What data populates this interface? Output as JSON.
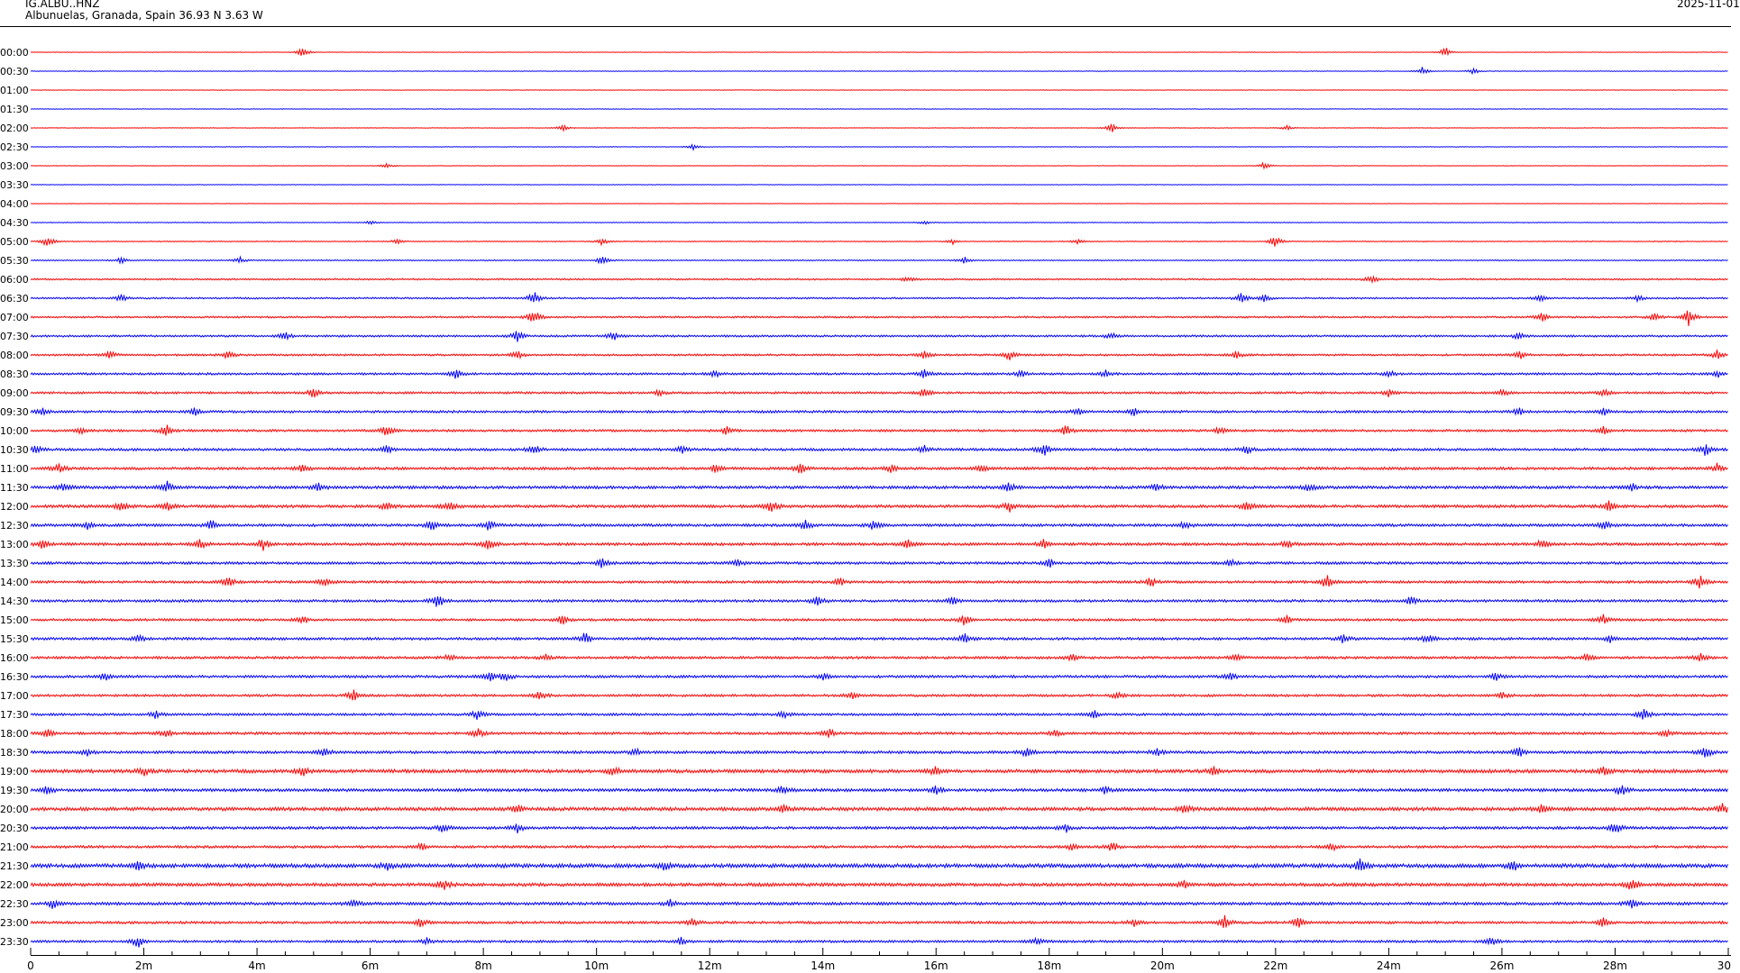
{
  "header": {
    "station": "IG.ALBU..HNZ",
    "location": "Albunuelas, Granada, Spain  36.93 N 3.63 W",
    "date": "2025-11-01"
  },
  "colors": {
    "odd_trace": "#ff0000",
    "even_trace": "#0000ff",
    "axis": "#000000"
  },
  "chart_data": {
    "type": "line",
    "title": "",
    "xlabel": "",
    "ylabel": "",
    "xlim": [
      0,
      30
    ],
    "x_ticks": [
      "0",
      "2m",
      "4m",
      "6m",
      "8m",
      "10m",
      "12m",
      "14m",
      "16m",
      "18m",
      "20m",
      "22m",
      "24m",
      "26m",
      "28m",
      "30"
    ],
    "x_tick_values": [
      0,
      2,
      4,
      6,
      8,
      10,
      12,
      14,
      16,
      18,
      20,
      22,
      24,
      26,
      28,
      30
    ],
    "minor_tick_step": 0.5,
    "rows": [
      "00:00",
      "00:30",
      "01:00",
      "01:30",
      "02:00",
      "02:30",
      "03:00",
      "03:30",
      "04:00",
      "04:30",
      "05:00",
      "05:30",
      "06:00",
      "06:30",
      "07:00",
      "07:30",
      "08:00",
      "08:30",
      "09:00",
      "09:30",
      "10:00",
      "10:30",
      "11:00",
      "11:30",
      "12:00",
      "12:30",
      "13:00",
      "13:30",
      "14:00",
      "14:30",
      "15:00",
      "15:30",
      "16:00",
      "16:30",
      "17:00",
      "17:30",
      "18:00",
      "18:30",
      "19:00",
      "19:30",
      "20:00",
      "20:30",
      "21:00",
      "21:30",
      "22:00",
      "22:30",
      "23:00",
      "23:30"
    ],
    "noise_level": [
      0.3,
      0.3,
      0.3,
      0.3,
      0.3,
      0.3,
      0.3,
      0.3,
      0.3,
      0.4,
      0.5,
      0.6,
      0.9,
      0.9,
      1.0,
      1.1,
      1.1,
      1.2,
      1.2,
      1.3,
      1.3,
      1.4,
      1.5,
      1.6,
      1.6,
      1.5,
      1.5,
      1.4,
      1.4,
      1.4,
      1.3,
      1.4,
      1.4,
      1.4,
      1.3,
      1.3,
      1.4,
      1.5,
      1.9,
      1.6,
      1.9,
      1.5,
      1.4,
      2.1,
      1.8,
      1.6,
      1.4,
      1.3
    ],
    "events": [
      [
        [
          4.8,
          4.5
        ],
        [
          25.0,
          4.5
        ]
      ],
      [
        [
          24.6,
          3.5
        ],
        [
          25.5,
          2.5
        ]
      ],
      [],
      [],
      [
        [
          9.4,
          3
        ],
        [
          19.1,
          4
        ],
        [
          22.2,
          2
        ]
      ],
      [
        [
          11.7,
          2.5
        ]
      ],
      [
        [
          6.3,
          2.5
        ],
        [
          21.8,
          3
        ]
      ],
      [],
      [],
      [
        [
          6.0,
          1.5
        ],
        [
          15.8,
          1.5
        ]
      ],
      [
        [
          0.3,
          5
        ],
        [
          6.5,
          2.5
        ],
        [
          10.1,
          3
        ],
        [
          16.3,
          2
        ],
        [
          18.5,
          2
        ],
        [
          22.0,
          5
        ]
      ],
      [
        [
          1.6,
          2.5
        ],
        [
          3.7,
          2.5
        ],
        [
          10.1,
          4
        ],
        [
          16.5,
          3
        ]
      ],
      [
        [
          15.5,
          2
        ],
        [
          23.7,
          4
        ]
      ],
      [
        [
          1.6,
          3
        ],
        [
          8.9,
          6
        ],
        [
          21.4,
          6
        ],
        [
          21.8,
          3
        ],
        [
          26.7,
          3
        ],
        [
          28.4,
          2.5
        ]
      ],
      [
        [
          8.9,
          7
        ],
        [
          26.7,
          3.5
        ],
        [
          28.7,
          4
        ],
        [
          29.3,
          7
        ]
      ],
      [
        [
          4.5,
          3
        ],
        [
          8.6,
          5
        ],
        [
          10.3,
          4
        ],
        [
          19.1,
          3
        ],
        [
          26.3,
          3
        ]
      ],
      [
        [
          1.4,
          3.5
        ],
        [
          3.5,
          3.5
        ],
        [
          8.6,
          4
        ],
        [
          15.8,
          3
        ],
        [
          17.3,
          4
        ],
        [
          21.3,
          3
        ],
        [
          26.3,
          4
        ],
        [
          29.8,
          3.5
        ]
      ],
      [
        [
          7.5,
          5
        ],
        [
          12.1,
          3
        ],
        [
          15.8,
          4
        ],
        [
          17.5,
          3
        ],
        [
          19.0,
          3
        ],
        [
          24.0,
          3
        ],
        [
          29.8,
          3
        ]
      ],
      [
        [
          5.0,
          4
        ],
        [
          11.1,
          2.5
        ],
        [
          15.8,
          4
        ],
        [
          24.0,
          3
        ],
        [
          26.0,
          3
        ],
        [
          27.8,
          3
        ]
      ],
      [
        [
          0.2,
          3
        ],
        [
          2.9,
          3
        ],
        [
          18.5,
          3
        ],
        [
          19.5,
          3
        ],
        [
          26.3,
          3
        ],
        [
          27.8,
          3
        ]
      ],
      [
        [
          0.9,
          3
        ],
        [
          2.4,
          5
        ],
        [
          6.3,
          5
        ],
        [
          12.3,
          3
        ],
        [
          18.3,
          4
        ],
        [
          21.0,
          3
        ],
        [
          27.8,
          3
        ]
      ],
      [
        [
          0.1,
          3
        ],
        [
          6.3,
          3
        ],
        [
          8.9,
          4
        ],
        [
          11.5,
          3
        ],
        [
          15.8,
          3
        ],
        [
          17.9,
          6
        ],
        [
          21.5,
          3
        ],
        [
          29.6,
          5
        ]
      ],
      [
        [
          0.5,
          4
        ],
        [
          4.8,
          4
        ],
        [
          12.1,
          3
        ],
        [
          13.6,
          4
        ],
        [
          15.2,
          3
        ],
        [
          16.8,
          3
        ],
        [
          29.8,
          3.5
        ]
      ],
      [
        [
          0.6,
          3
        ],
        [
          2.4,
          5
        ],
        [
          5.1,
          3
        ],
        [
          17.3,
          4
        ],
        [
          19.9,
          3
        ],
        [
          22.6,
          3
        ],
        [
          28.3,
          3
        ]
      ],
      [
        [
          1.6,
          4
        ],
        [
          2.4,
          4
        ],
        [
          6.3,
          3.5
        ],
        [
          7.4,
          4
        ],
        [
          13.1,
          5
        ],
        [
          17.3,
          4
        ],
        [
          21.5,
          4
        ],
        [
          27.9,
          4
        ]
      ],
      [
        [
          1.0,
          3
        ],
        [
          3.2,
          4
        ],
        [
          7.1,
          4
        ],
        [
          8.1,
          4
        ],
        [
          13.7,
          4
        ],
        [
          14.9,
          4
        ],
        [
          20.4,
          3
        ],
        [
          27.8,
          4
        ]
      ],
      [
        [
          0.2,
          4
        ],
        [
          3.0,
          4
        ],
        [
          4.1,
          5
        ],
        [
          8.1,
          5
        ],
        [
          15.5,
          4
        ],
        [
          17.9,
          3.5
        ],
        [
          22.2,
          3
        ],
        [
          26.7,
          4
        ]
      ],
      [
        [
          10.1,
          4
        ],
        [
          12.5,
          3
        ],
        [
          18.0,
          4
        ],
        [
          21.2,
          3
        ]
      ],
      [
        [
          3.5,
          4
        ],
        [
          5.2,
          4
        ],
        [
          14.3,
          3
        ],
        [
          19.8,
          4
        ],
        [
          22.9,
          6
        ],
        [
          29.5,
          5
        ]
      ],
      [
        [
          7.2,
          6
        ],
        [
          13.9,
          5
        ],
        [
          16.3,
          3
        ],
        [
          24.4,
          4
        ]
      ],
      [
        [
          4.8,
          3
        ],
        [
          9.4,
          4
        ],
        [
          16.5,
          4
        ],
        [
          22.2,
          3
        ],
        [
          27.8,
          4
        ]
      ],
      [
        [
          1.9,
          3
        ],
        [
          9.8,
          5
        ],
        [
          16.5,
          4
        ],
        [
          23.2,
          4
        ],
        [
          24.7,
          4
        ],
        [
          27.9,
          3
        ]
      ],
      [
        [
          7.4,
          3
        ],
        [
          9.1,
          3
        ],
        [
          18.4,
          3
        ],
        [
          21.3,
          3
        ],
        [
          27.5,
          3
        ],
        [
          29.5,
          4
        ]
      ],
      [
        [
          1.3,
          3.5
        ],
        [
          8.1,
          4
        ],
        [
          8.4,
          4
        ],
        [
          14.0,
          3
        ],
        [
          21.2,
          3
        ],
        [
          25.9,
          3
        ]
      ],
      [
        [
          5.7,
          5
        ],
        [
          9.0,
          4
        ],
        [
          14.5,
          3
        ],
        [
          19.2,
          3
        ],
        [
          26.0,
          3
        ]
      ],
      [
        [
          2.2,
          3
        ],
        [
          7.9,
          4
        ],
        [
          13.3,
          3
        ],
        [
          18.8,
          3
        ],
        [
          28.5,
          6
        ]
      ],
      [
        [
          0.3,
          3
        ],
        [
          2.4,
          4
        ],
        [
          7.9,
          4
        ],
        [
          14.1,
          4
        ],
        [
          18.1,
          3
        ],
        [
          28.9,
          3
        ]
      ],
      [
        [
          1.0,
          3
        ],
        [
          5.2,
          3
        ],
        [
          10.7,
          3
        ],
        [
          17.6,
          4
        ],
        [
          19.9,
          3
        ],
        [
          26.3,
          4
        ],
        [
          29.6,
          5
        ]
      ],
      [
        [
          2.0,
          3
        ],
        [
          4.8,
          4
        ],
        [
          10.3,
          4
        ],
        [
          16.0,
          4
        ],
        [
          20.9,
          3
        ],
        [
          27.8,
          4
        ]
      ],
      [
        [
          0.3,
          4
        ],
        [
          13.3,
          4
        ],
        [
          16.0,
          3
        ],
        [
          19.0,
          3
        ],
        [
          28.1,
          5
        ]
      ],
      [
        [
          8.6,
          3
        ],
        [
          13.3,
          3
        ],
        [
          20.4,
          3
        ],
        [
          26.7,
          3
        ],
        [
          29.9,
          4
        ]
      ],
      [
        [
          7.3,
          4
        ],
        [
          8.6,
          4
        ],
        [
          18.3,
          3
        ],
        [
          28.0,
          5
        ]
      ],
      [
        [
          6.9,
          3
        ],
        [
          18.4,
          3
        ],
        [
          19.1,
          4
        ],
        [
          23.0,
          3
        ]
      ],
      [
        [
          1.9,
          3
        ],
        [
          6.3,
          3
        ],
        [
          11.2,
          3
        ],
        [
          23.5,
          5
        ],
        [
          26.2,
          4
        ]
      ],
      [
        [
          7.3,
          4
        ],
        [
          20.4,
          3
        ],
        [
          28.3,
          5
        ]
      ],
      [
        [
          0.4,
          4
        ],
        [
          5.7,
          3
        ],
        [
          11.3,
          3
        ],
        [
          28.3,
          4
        ]
      ],
      [
        [
          6.9,
          4
        ],
        [
          11.7,
          3
        ],
        [
          19.5,
          3
        ],
        [
          21.1,
          5
        ],
        [
          22.4,
          4
        ],
        [
          27.8,
          4
        ]
      ],
      [
        [
          1.9,
          5
        ],
        [
          7.0,
          3
        ],
        [
          11.5,
          3
        ],
        [
          17.8,
          3
        ],
        [
          25.8,
          4
        ]
      ]
    ]
  }
}
